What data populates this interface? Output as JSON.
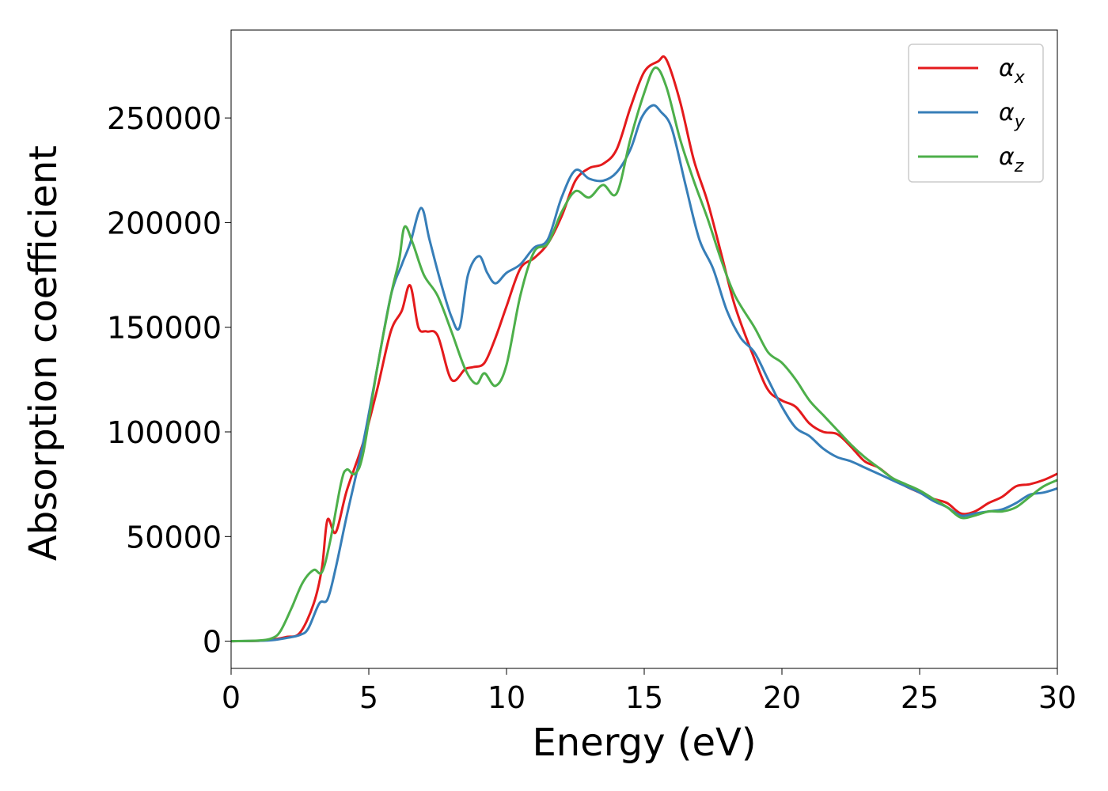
{
  "chart_data": {
    "type": "line",
    "title": "",
    "xlabel": "Energy (eV)",
    "ylabel": "Absorption coefficient",
    "xlim": [
      0,
      30
    ],
    "ylim": [
      -13000,
      292000
    ],
    "x_ticks": [
      0,
      5,
      10,
      15,
      20,
      25,
      30
    ],
    "y_ticks": [
      0,
      50000,
      100000,
      150000,
      200000,
      250000
    ],
    "grid": false,
    "legend_position": "top-right",
    "series": [
      {
        "name": "α_x",
        "label_base": "α",
        "label_sub": "x",
        "color": "#e41a1c",
        "x": [
          0,
          1,
          1.5,
          2,
          2.5,
          3,
          3.3,
          3.5,
          3.8,
          4.2,
          4.8,
          5.3,
          5.8,
          6.2,
          6.5,
          6.8,
          7.1,
          7.5,
          8,
          8.5,
          8.8,
          9.2,
          9.6,
          10,
          10.5,
          11,
          11.5,
          12,
          12.5,
          13,
          13.5,
          14,
          14.5,
          15,
          15.5,
          15.8,
          16.3,
          16.8,
          17.3,
          17.8,
          18.3,
          19,
          19.5,
          20,
          20.5,
          21,
          21.5,
          22,
          22.5,
          23,
          23.5,
          24,
          24.5,
          25,
          25.5,
          26,
          26.5,
          27,
          27.5,
          28,
          28.5,
          29,
          29.5,
          30
        ],
        "y": [
          0,
          200,
          800,
          2000,
          4000,
          18000,
          35000,
          58000,
          52000,
          72000,
          95000,
          120000,
          148000,
          158000,
          170000,
          150000,
          148000,
          146000,
          125000,
          130000,
          131000,
          133000,
          145000,
          160000,
          178000,
          183000,
          190000,
          203000,
          220000,
          226000,
          228000,
          235000,
          255000,
          272000,
          277000,
          278000,
          258000,
          230000,
          210000,
          185000,
          160000,
          135000,
          120000,
          115000,
          112000,
          104000,
          100000,
          99000,
          93000,
          86000,
          83000,
          78000,
          74000,
          71000,
          68000,
          66000,
          61000,
          62000,
          66000,
          69000,
          74000,
          75000,
          77000,
          80000
        ]
      },
      {
        "name": "α_y",
        "label_base": "α",
        "label_sub": "y",
        "color": "#377eb8",
        "x": [
          0,
          1,
          1.5,
          2,
          2.5,
          2.8,
          3.2,
          3.5,
          3.8,
          4.2,
          4.8,
          5.3,
          5.8,
          6.2,
          6.5,
          6.9,
          7.2,
          7.6,
          8,
          8.3,
          8.6,
          9,
          9.3,
          9.6,
          10,
          10.5,
          11,
          11.5,
          12,
          12.5,
          13,
          13.5,
          14,
          14.5,
          14.9,
          15.3,
          15.6,
          16,
          16.5,
          17,
          17.5,
          18,
          18.5,
          19,
          19.5,
          20,
          20.5,
          21,
          21.5,
          22,
          22.5,
          23,
          23.5,
          24,
          24.5,
          25,
          25.5,
          26,
          26.5,
          27,
          27.5,
          28,
          28.5,
          29,
          29.5,
          30
        ],
        "y": [
          0,
          200,
          500,
          1500,
          3000,
          6000,
          18000,
          20000,
          35000,
          60000,
          95000,
          130000,
          165000,
          180000,
          190000,
          207000,
          192000,
          172000,
          155000,
          150000,
          175000,
          184000,
          176000,
          171000,
          176000,
          180000,
          188000,
          192000,
          212000,
          225000,
          221000,
          220000,
          224000,
          235000,
          250000,
          256000,
          253000,
          245000,
          218000,
          192000,
          178000,
          158000,
          145000,
          138000,
          125000,
          112000,
          102000,
          98000,
          92000,
          88000,
          86000,
          83000,
          80000,
          77000,
          74000,
          71000,
          67000,
          64000,
          60000,
          61000,
          62000,
          63000,
          66000,
          70000,
          71000,
          73000
        ]
      },
      {
        "name": "α_z",
        "label_base": "α",
        "label_sub": "z",
        "color": "#4daf4a",
        "x": [
          0,
          1,
          1.5,
          1.8,
          2.2,
          2.6,
          3,
          3.3,
          3.6,
          4,
          4.2,
          4.5,
          4.8,
          5.3,
          5.8,
          6.1,
          6.3,
          6.6,
          7,
          7.5,
          8,
          8.5,
          8.9,
          9.2,
          9.6,
          10,
          10.5,
          11,
          11.5,
          12,
          12.5,
          13,
          13.5,
          14,
          14.5,
          15,
          15.4,
          15.8,
          16.3,
          16.8,
          17.3,
          17.8,
          18.3,
          19,
          19.5,
          20,
          20.5,
          21,
          21.5,
          22,
          22.5,
          23,
          23.5,
          24,
          24.5,
          25,
          25.5,
          26,
          26.5,
          27,
          27.5,
          28,
          28.5,
          29,
          29.5,
          30
        ],
        "y": [
          0,
          300,
          1500,
          5000,
          16000,
          28000,
          34000,
          33000,
          48000,
          76000,
          82000,
          80000,
          90000,
          130000,
          165000,
          182000,
          198000,
          190000,
          175000,
          165000,
          148000,
          130000,
          123000,
          128000,
          122000,
          132000,
          165000,
          186000,
          190000,
          205000,
          215000,
          212000,
          218000,
          214000,
          240000,
          262000,
          274000,
          265000,
          240000,
          220000,
          202000,
          182000,
          165000,
          150000,
          138000,
          133000,
          125000,
          115000,
          108000,
          101000,
          94000,
          88000,
          83000,
          78000,
          75000,
          72000,
          68000,
          64000,
          59000,
          60000,
          62000,
          62000,
          64000,
          69000,
          74000,
          77000
        ]
      }
    ]
  }
}
